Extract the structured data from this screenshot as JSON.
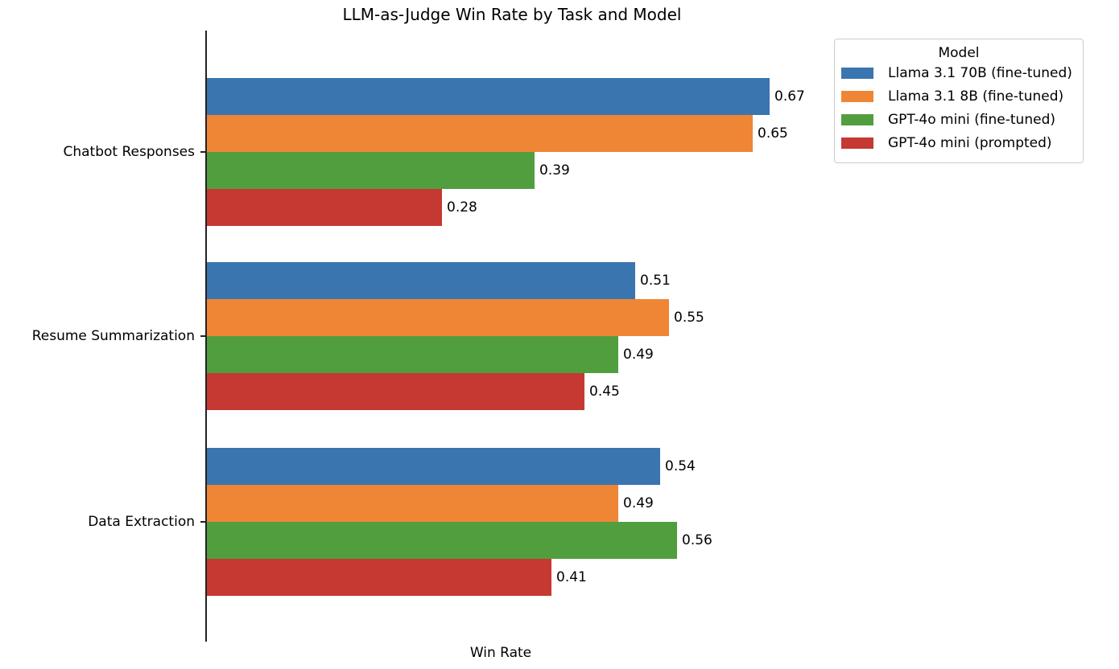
{
  "chart_data": {
    "type": "bar",
    "orientation": "horizontal",
    "title": "LLM-as-Judge Win Rate by Task and Model",
    "xlabel": "Win Rate",
    "ylabel": "",
    "categories": [
      "Chatbot Responses",
      "Resume Summarization",
      "Data Extraction"
    ],
    "series": [
      {
        "name": "Llama 3.1 70B (fine-tuned)",
        "color": "#3a75af",
        "values": [
          0.67,
          0.51,
          0.54
        ]
      },
      {
        "name": "Llama 3.1 8B (fine-tuned)",
        "color": "#ef8636",
        "values": [
          0.65,
          0.55,
          0.49
        ]
      },
      {
        "name": "GPT-4o mini (fine-tuned)",
        "color": "#519e3e",
        "values": [
          0.39,
          0.49,
          0.56
        ]
      },
      {
        "name": "GPT-4o mini (prompted)",
        "color": "#c53932",
        "values": [
          0.28,
          0.45,
          0.41
        ]
      }
    ],
    "value_labels": [
      [
        "0.67",
        "0.51",
        "0.54"
      ],
      [
        "0.65",
        "0.55",
        "0.49"
      ],
      [
        "0.39",
        "0.49",
        "0.56"
      ],
      [
        "0.28",
        "0.45",
        "0.41"
      ]
    ],
    "xlim": [
      0,
      0.7
    ],
    "grid": false,
    "x_ticks_visible": false,
    "legend": {
      "title": "Model",
      "position": "upper right, outside plot"
    }
  }
}
